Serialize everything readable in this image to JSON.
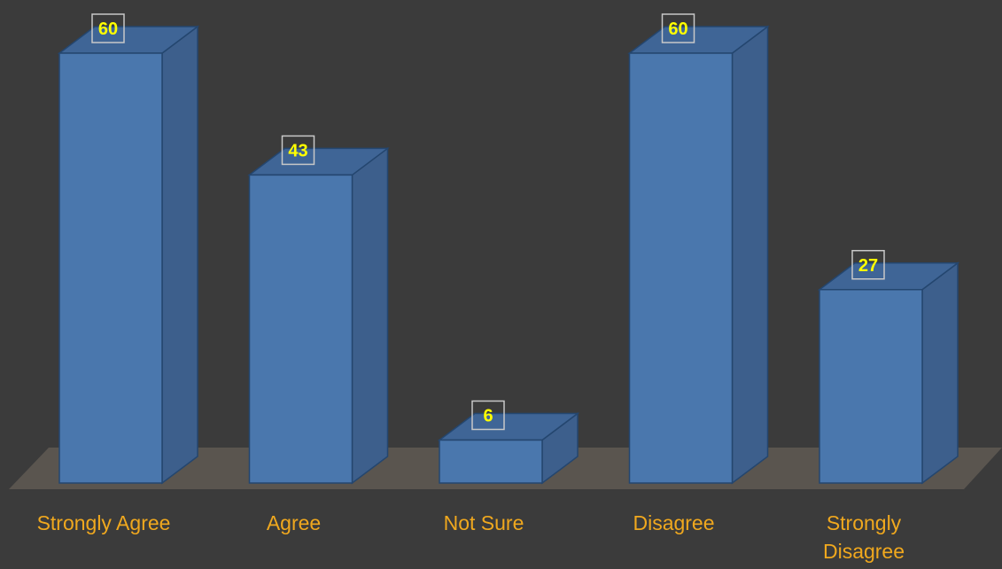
{
  "chart_data": {
    "type": "bar",
    "title": "",
    "xlabel": "",
    "ylabel": "",
    "categories": [
      [
        "Strongly Agree"
      ],
      [
        "Agree"
      ],
      [
        "Not Sure"
      ],
      [
        "Disagree"
      ],
      [
        "Strongly",
        "Disagree"
      ]
    ],
    "values": [
      60,
      43,
      6,
      60,
      27
    ],
    "ylim": [
      0,
      60
    ],
    "grid": false,
    "legend": "none",
    "style": "3d-columns"
  },
  "colors": {
    "background": "#3b3b3b",
    "bar_front": "#4a77ad",
    "bar_side": "#3d5f8c",
    "bar_top": "#3f6596",
    "bar_edge": "#24466f",
    "floor": "#5a554f",
    "category_text": "#f0a81e",
    "value_text": "#ffff00",
    "value_box_border": "#c8c8c8"
  }
}
